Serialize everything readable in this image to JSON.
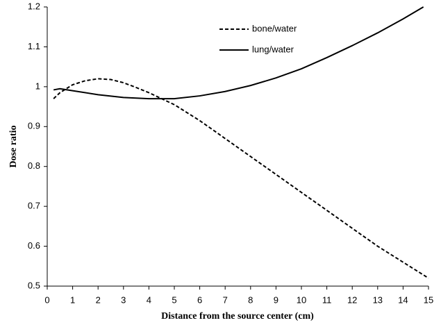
{
  "chart_data": {
    "type": "line",
    "x_label": "Distance from the source center (cm)",
    "y_label": "Dose  ratio",
    "xlim": [
      0,
      15
    ],
    "xticks": [
      0,
      1,
      2,
      3,
      4,
      5,
      6,
      7,
      8,
      9,
      10,
      11,
      12,
      13,
      14,
      15
    ],
    "ylim": [
      0.5,
      1.2
    ],
    "yticks": [
      0.5,
      0.6,
      0.7,
      0.8,
      0.9,
      1,
      1.1,
      1.2
    ],
    "grid": false,
    "legend": "top",
    "series": [
      {
        "name": "bone/water",
        "color": "#000000",
        "dash": "dashed",
        "x": [
          0.25,
          0.5,
          1,
          1.5,
          2,
          2.5,
          3,
          3.5,
          4,
          4.5,
          5,
          6,
          7,
          8,
          9,
          10,
          11,
          12,
          13,
          14,
          15
        ],
        "values": [
          0.97,
          0.985,
          1.005,
          1.015,
          1.02,
          1.018,
          1.01,
          0.998,
          0.985,
          0.97,
          0.955,
          0.915,
          0.87,
          0.825,
          0.78,
          0.735,
          0.69,
          0.645,
          0.6,
          0.56,
          0.52
        ]
      },
      {
        "name": "lung/water",
        "color": "#000000",
        "dash": "solid",
        "x": [
          0.25,
          0.5,
          1,
          2,
          3,
          4,
          5,
          6,
          7,
          8,
          9,
          10,
          11,
          12,
          13,
          14,
          14.8
        ],
        "values": [
          0.992,
          0.995,
          0.99,
          0.98,
          0.973,
          0.97,
          0.97,
          0.977,
          0.988,
          1.003,
          1.022,
          1.045,
          1.073,
          1.103,
          1.135,
          1.17,
          1.2
        ]
      }
    ]
  }
}
